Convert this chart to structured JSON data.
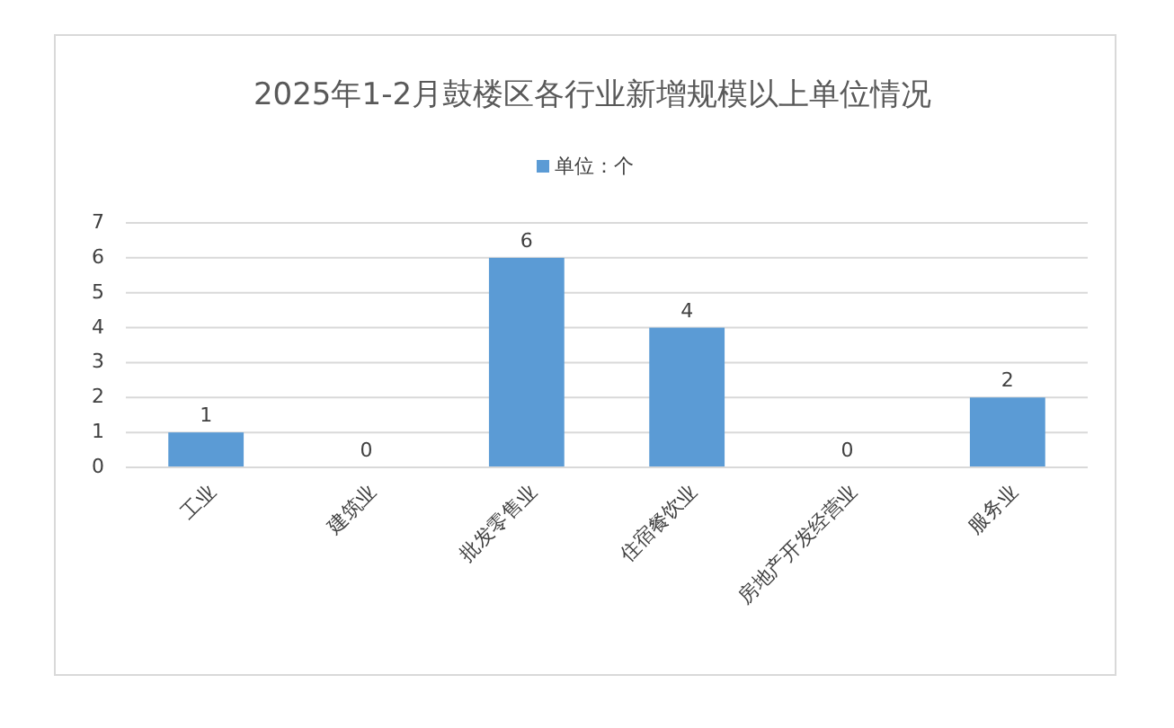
{
  "chart_data": {
    "type": "bar",
    "title": "2025年1-2月鼓楼区各行业新增规模以上单位情况",
    "categories": [
      "工业",
      "建筑业",
      "批发零售业",
      "住宿餐饮业",
      "房地产开发经营业",
      "服务业"
    ],
    "series": [
      {
        "name": "单位：个",
        "color": "#5b9bd5",
        "values": [
          1,
          0,
          6,
          4,
          0,
          2
        ]
      }
    ],
    "ylim": [
      0,
      7
    ],
    "yticks": [
      0,
      1,
      2,
      3,
      4,
      5,
      6,
      7
    ],
    "grid": "y",
    "legend": "top",
    "data_labels": true
  }
}
